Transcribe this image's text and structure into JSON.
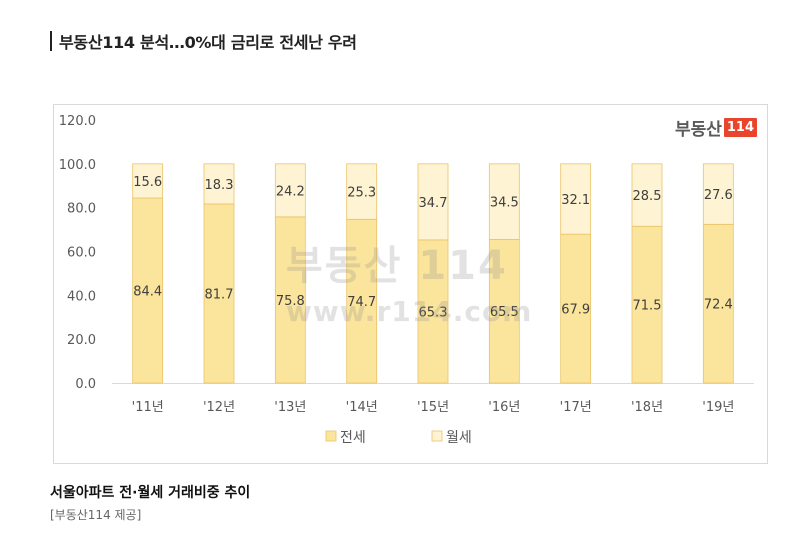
{
  "article": {
    "headline": "부동산114 분석…0%대 금리로 전세난 우려",
    "caption": "서울아파트 전·월세 거래비중 추이",
    "source": "[부동산114 제공]"
  },
  "logo": {
    "text": "부동산",
    "num": "114"
  },
  "watermark": {
    "logo": "부동산 114",
    "url": "www.r114.com"
  },
  "colors": {
    "jeonse": "#fbe49c",
    "wolse": "#fef3d2",
    "border": "#e9c46a"
  },
  "chart_data": {
    "type": "bar",
    "stacked": true,
    "categories": [
      "'11년",
      "'12년",
      "'13년",
      "'14년",
      "'15년",
      "'16년",
      "'17년",
      "'18년",
      "'19년"
    ],
    "series": [
      {
        "name": "전세",
        "values": [
          84.4,
          81.7,
          75.8,
          74.7,
          65.3,
          65.5,
          67.9,
          71.5,
          72.4
        ]
      },
      {
        "name": "월세",
        "values": [
          15.6,
          18.3,
          24.2,
          25.3,
          34.7,
          34.5,
          32.1,
          28.5,
          27.6
        ]
      }
    ],
    "ylim": [
      0,
      120
    ],
    "yticks": [
      "0.0",
      "20.0",
      "40.0",
      "60.0",
      "80.0",
      "100.0",
      "120.0"
    ],
    "legend_position": "bottom",
    "grid": false
  }
}
